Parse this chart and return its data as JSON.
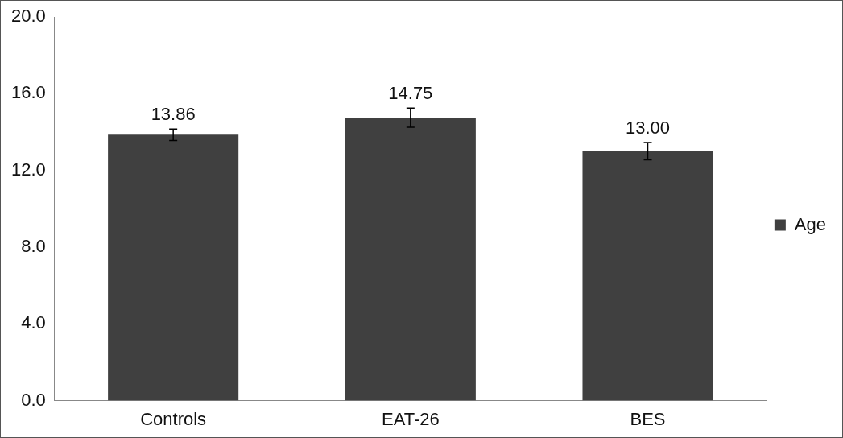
{
  "chart_data": {
    "type": "bar",
    "categories": [
      "Controls",
      "EAT-26",
      "BES"
    ],
    "series": [
      {
        "name": "Age",
        "color": "#404040",
        "values": [
          13.86,
          14.75,
          13.0
        ],
        "errors": [
          0.3,
          0.5,
          0.45
        ],
        "value_labels": [
          "13.86",
          "14.75",
          "13.00"
        ]
      }
    ],
    "ylim": [
      0,
      20
    ],
    "yticks": [
      {
        "value": 0,
        "label": "0.0"
      },
      {
        "value": 4,
        "label": "4.0"
      },
      {
        "value": 8,
        "label": "8.0"
      },
      {
        "value": 12,
        "label": "12.0"
      },
      {
        "value": 16,
        "label": "16.0"
      },
      {
        "value": 20,
        "label": "20.0"
      }
    ],
    "grid": false,
    "legend": "right"
  }
}
